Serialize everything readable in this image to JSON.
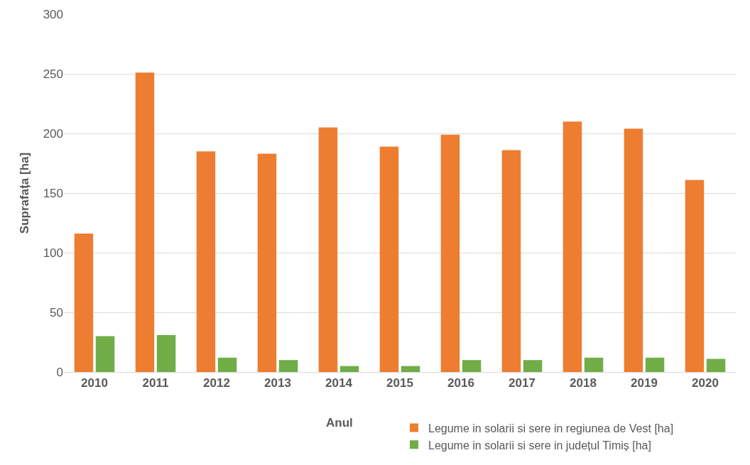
{
  "chart_data": {
    "type": "bar",
    "xlabel": "Anul",
    "ylabel": "Suprafața [ha]",
    "categories": [
      "2010",
      "2011",
      "2012",
      "2013",
      "2014",
      "2015",
      "2016",
      "2017",
      "2018",
      "2019",
      "2020"
    ],
    "series": [
      {
        "name": "Legume in solarii si sere in regiunea de Vest [ha]",
        "color": "#ed7d31",
        "values": [
          116,
          251,
          185,
          183,
          205,
          189,
          199,
          186,
          210,
          204,
          161
        ]
      },
      {
        "name": "Legume in solarii si sere in județul Timiș [ha]",
        "color": "#70ad47",
        "values": [
          30,
          31,
          12,
          10,
          5,
          5,
          10,
          10,
          12,
          12,
          11
        ]
      }
    ],
    "ylim": [
      0,
      300
    ],
    "yticks": [
      0,
      50,
      100,
      150,
      200,
      250,
      300
    ],
    "grid": "y",
    "legend": "bottom right"
  }
}
